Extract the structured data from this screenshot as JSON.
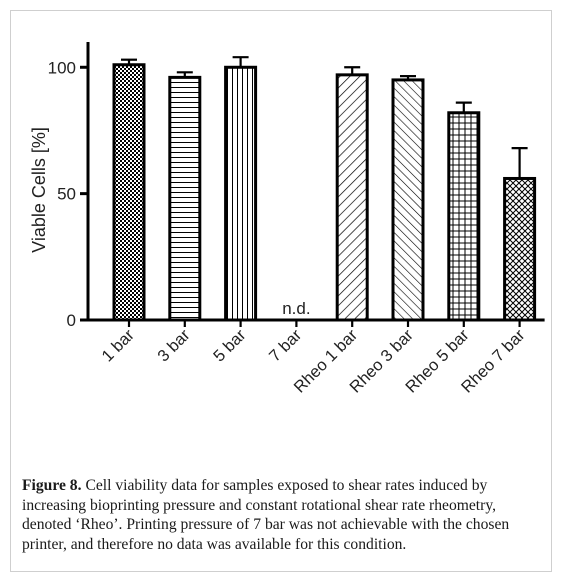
{
  "chart_data": {
    "type": "bar",
    "categories": [
      "1 bar",
      "3 bar",
      "5 bar",
      "7 bar",
      "Rheo 1 bar",
      "Rheo 3 bar",
      "Rheo 5 bar",
      "Rheo 7 bar"
    ],
    "values": [
      101,
      96,
      100,
      null,
      97,
      95,
      82,
      56
    ],
    "errors": [
      2,
      2,
      4,
      null,
      3,
      1.5,
      4,
      12
    ],
    "patterns": [
      "checker",
      "horizontal",
      "vertical",
      "none",
      "diag-up",
      "diag-down",
      "grid",
      "crosshatch"
    ],
    "annotations": [
      {
        "category": "7 bar",
        "text": "n.d."
      }
    ],
    "ylabel": "Viable Cells [%]",
    "xlabel": "",
    "title": "",
    "ylim": [
      0,
      110
    ],
    "yticks": [
      0,
      50,
      100
    ],
    "grid": false
  },
  "caption": {
    "label": "Figure 8.",
    "text": "Cell viability data for samples exposed to shear rates induced by increasing bioprinting pressure and constant rotational shear rate rheometry, denoted ‘Rheo’. Printing pressure of 7 bar was not achievable with the chosen printer, and therefore no data was available for this condition."
  }
}
